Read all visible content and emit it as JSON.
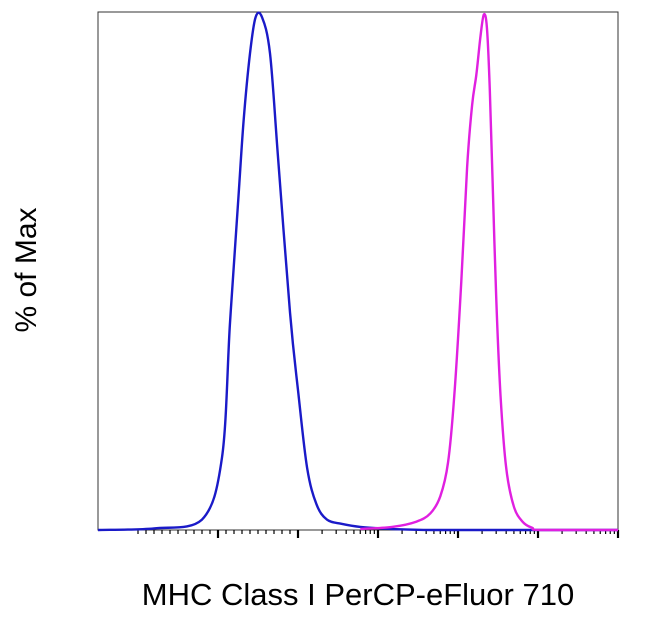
{
  "chart_data": {
    "type": "line",
    "title": "",
    "xlabel": "MHC Class I PerCP-eFluor 710",
    "ylabel": "% of Max",
    "xscale": "log",
    "xlim": [
      -150,
      1000000
    ],
    "ylim": [
      0,
      100
    ],
    "grid": false,
    "legend": "none",
    "tick_labels_shown": false,
    "series": [
      {
        "color": "#1a1ac8",
        "x": [
          -150,
          -80,
          -20,
          5,
          15,
          25,
          32,
          40,
          47,
          55,
          65,
          75,
          90,
          100,
          130,
          170,
          230,
          350,
          600,
          1500,
          5000,
          100000,
          1000000
        ],
        "y": [
          0,
          0.3,
          2,
          14,
          40,
          63,
          79,
          92,
          99,
          99,
          92,
          72,
          42,
          27,
          12,
          5,
          2,
          1.2,
          0.6,
          0.2,
          0,
          0,
          0
        ]
      },
      {
        "color": "#e020e0",
        "x": [
          600,
          1500,
          3000,
          4500,
          6000,
          7500,
          9000,
          11000,
          13000,
          15000,
          17000,
          19000,
          21000,
          23000,
          25000,
          27000,
          30000,
          34000,
          40000,
          50000,
          65000,
          85000,
          110000,
          1000000
        ],
        "y": [
          0.2,
          0.6,
          1.6,
          3.2,
          6.5,
          13,
          26,
          48,
          70,
          82,
          88,
          95,
          99.5,
          97,
          85,
          68,
          45,
          26,
          12,
          4.5,
          1.5,
          0.4,
          0,
          0
        ]
      }
    ]
  }
}
